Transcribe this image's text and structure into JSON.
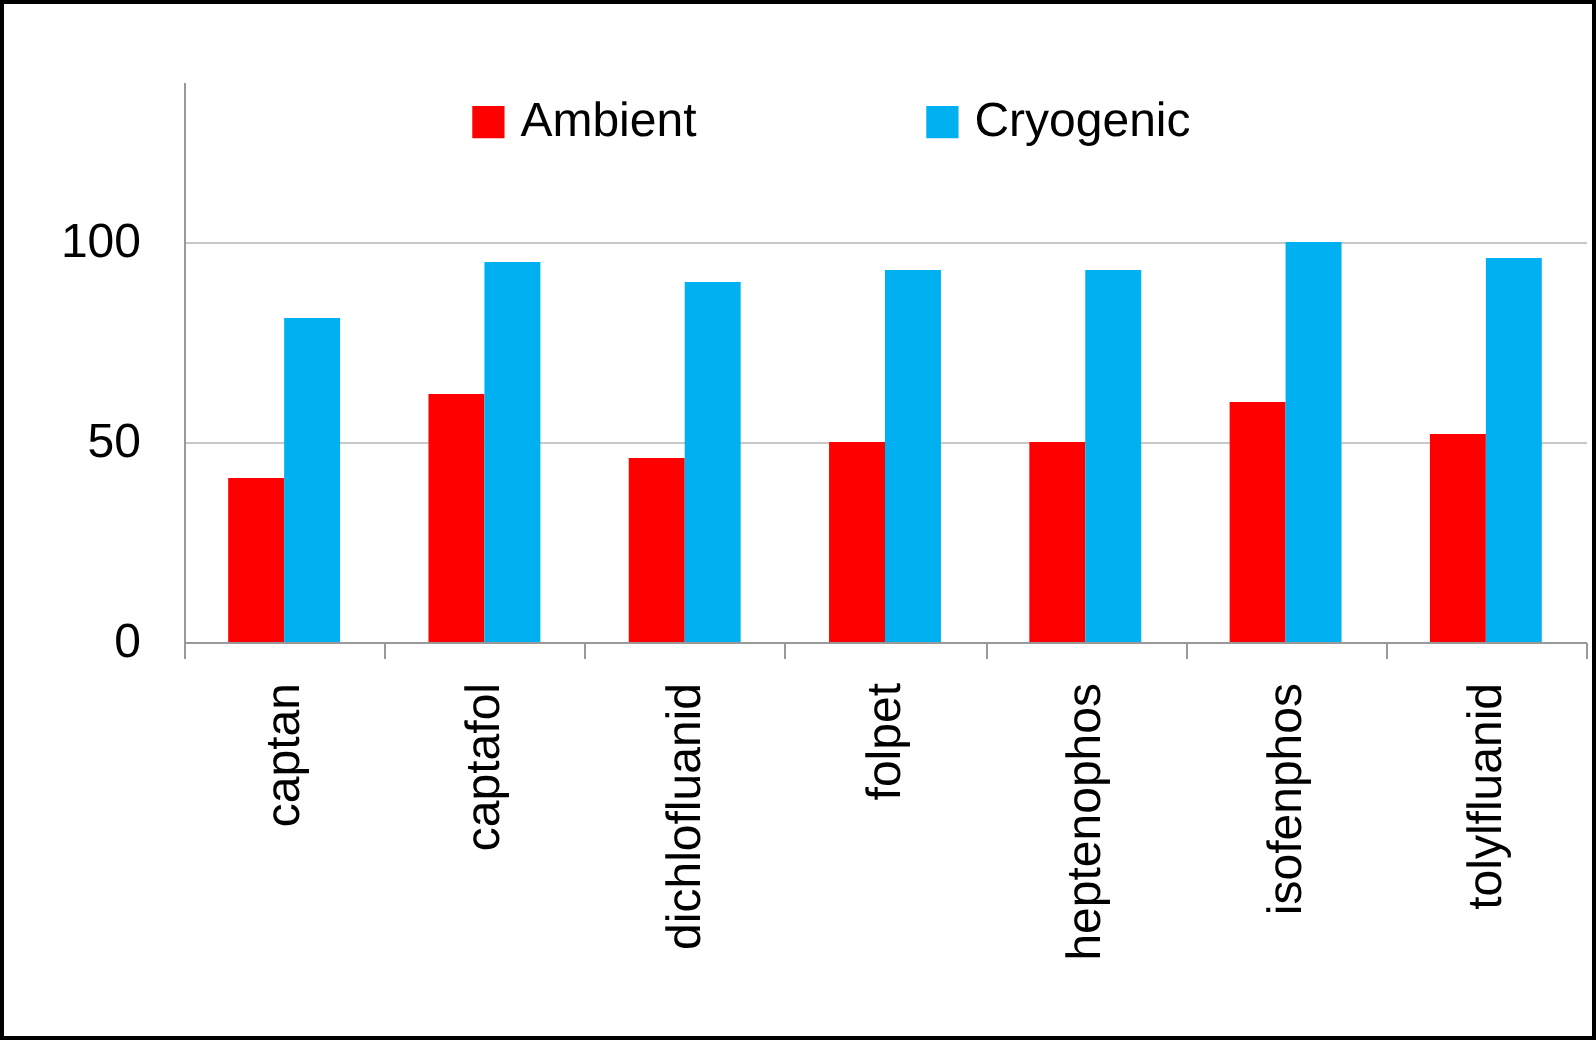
{
  "chart_data": {
    "type": "bar",
    "categories": [
      "captan",
      "captafol",
      "dichlofluanid",
      "folpet",
      "heptenophos",
      "isofenphos",
      "tolylfluanid"
    ],
    "series": [
      {
        "name": "Ambient",
        "color": "#ff0000",
        "values": [
          41,
          62,
          46,
          50,
          50,
          60,
          52
        ]
      },
      {
        "name": "Cryogenic",
        "color": "#00b0f0",
        "values": [
          81,
          95,
          90,
          93,
          93,
          100,
          96
        ]
      }
    ],
    "ylim": [
      0,
      140
    ],
    "yticks": [
      0,
      50,
      100
    ],
    "grid": "y",
    "legend": "top"
  }
}
